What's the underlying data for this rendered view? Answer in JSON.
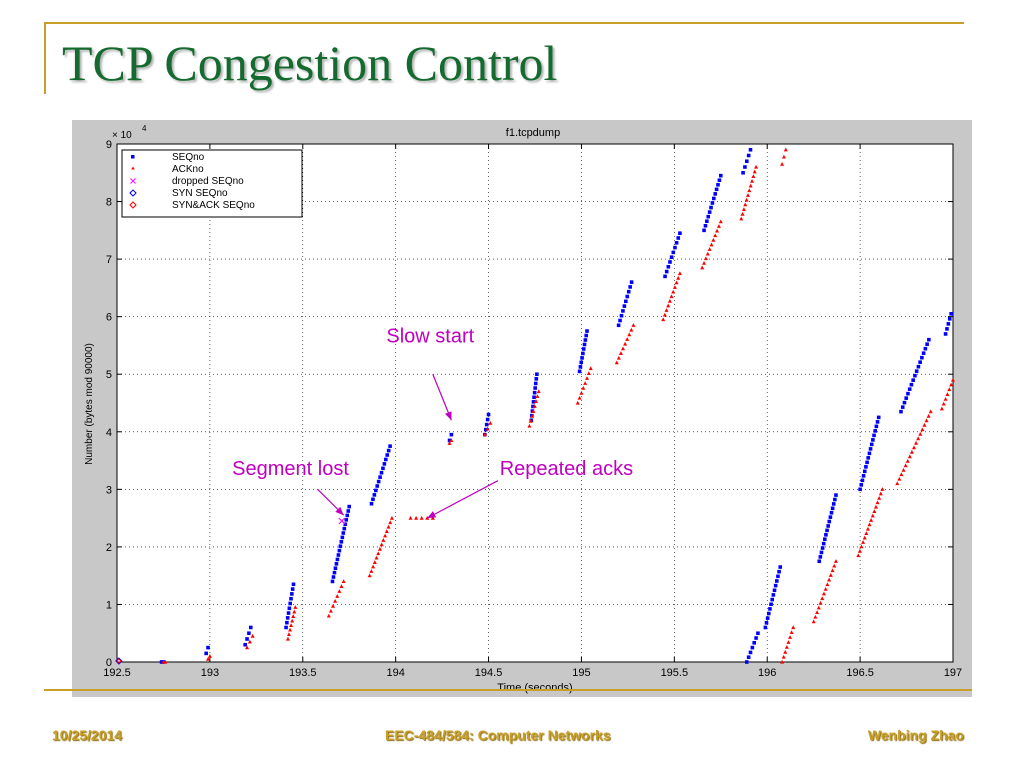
{
  "slide": {
    "title": "TCP Congestion Control",
    "footer_date": "10/25/2014",
    "footer_course": "EEC-484/584: Computer Networks",
    "footer_author": "Wenbing Zhao",
    "accent_color": "#c8a028",
    "title_color": "#156b2f"
  },
  "chart_data": {
    "type": "scatter",
    "title": "f1.tcpdump",
    "xlabel": "Time (seconds)",
    "ylabel": "Number (bytes mod 90000)",
    "y_multiplier_label": "× 10",
    "y_multiplier_exp": "4",
    "xlim": [
      192.5,
      197
    ],
    "ylim": [
      0,
      9
    ],
    "xticks": [
      "192.5",
      "193",
      "193.5",
      "194",
      "194.5",
      "195",
      "195.5",
      "196",
      "196.5",
      "197"
    ],
    "yticks": [
      "0",
      "1",
      "2",
      "3",
      "4",
      "5",
      "6",
      "7",
      "8",
      "9"
    ],
    "grid": true,
    "legend_position": "top-left",
    "legend": [
      {
        "label": "SEQno",
        "marker": "square",
        "color": "#0000ff"
      },
      {
        "label": "ACKno",
        "marker": "triangle",
        "color": "#ff0000"
      },
      {
        "label": "dropped SEQno",
        "marker": "x",
        "color": "#ff00ff"
      },
      {
        "label": "SYN SEQno",
        "marker": "diamond",
        "color": "#0000ff"
      },
      {
        "label": "SYN&ACK SEQno",
        "marker": "diamond",
        "color": "#ff0000"
      }
    ],
    "series": [
      {
        "name": "SEQno",
        "segments": [
          {
            "x": [
              192.74,
              192.75
            ],
            "y": [
              0,
              0
            ]
          },
          {
            "x": [
              192.98,
              192.99
            ],
            "y": [
              0.15,
              0.25
            ]
          },
          {
            "x": [
              193.19,
              193.22
            ],
            "y": [
              0.3,
              0.6
            ]
          },
          {
            "x": [
              193.41,
              193.45
            ],
            "y": [
              0.6,
              1.35
            ]
          },
          {
            "x": [
              193.66,
              193.75
            ],
            "y": [
              1.4,
              2.7
            ]
          },
          {
            "x": [
              193.87,
              193.97
            ],
            "y": [
              2.75,
              3.75
            ]
          },
          {
            "x": [
              194.29,
              194.3
            ],
            "y": [
              3.85,
              3.95
            ]
          },
          {
            "x": [
              194.48,
              194.5
            ],
            "y": [
              3.95,
              4.3
            ]
          },
          {
            "x": [
              194.73,
              194.76
            ],
            "y": [
              4.2,
              5.0
            ]
          },
          {
            "x": [
              194.99,
              195.03
            ],
            "y": [
              5.05,
              5.75
            ]
          },
          {
            "x": [
              195.2,
              195.27
            ],
            "y": [
              5.85,
              6.6
            ]
          },
          {
            "x": [
              195.45,
              195.53
            ],
            "y": [
              6.7,
              7.45
            ]
          },
          {
            "x": [
              195.66,
              195.75
            ],
            "y": [
              7.5,
              8.45
            ]
          },
          {
            "x": [
              195.87,
              195.91
            ],
            "y": [
              8.5,
              8.9
            ]
          },
          {
            "x": [
              195.89,
              195.95
            ],
            "y": [
              0,
              0.5
            ]
          },
          {
            "x": [
              195.99,
              196.07
            ],
            "y": [
              0.6,
              1.65
            ]
          },
          {
            "x": [
              196.28,
              196.37
            ],
            "y": [
              1.75,
              2.9
            ]
          },
          {
            "x": [
              196.5,
              196.6
            ],
            "y": [
              3.0,
              4.25
            ]
          },
          {
            "x": [
              196.72,
              196.87
            ],
            "y": [
              4.35,
              5.6
            ]
          },
          {
            "x": [
              196.96,
              196.99
            ],
            "y": [
              5.7,
              6.05
            ]
          }
        ]
      },
      {
        "name": "ACKno",
        "segments": [
          {
            "x": [
              192.75,
              192.76
            ],
            "y": [
              0,
              0
            ]
          },
          {
            "x": [
              192.99,
              193.0
            ],
            "y": [
              0.05,
              0.1
            ]
          },
          {
            "x": [
              193.2,
              193.23
            ],
            "y": [
              0.25,
              0.45
            ]
          },
          {
            "x": [
              193.42,
              193.46
            ],
            "y": [
              0.4,
              0.95
            ]
          },
          {
            "x": [
              193.64,
              193.72
            ],
            "y": [
              0.8,
              1.4
            ]
          },
          {
            "x": [
              193.86,
              193.98
            ],
            "y": [
              1.5,
              2.5
            ]
          },
          {
            "x": [
              194.08,
              194.2
            ],
            "y": [
              2.5,
              2.5
            ]
          },
          {
            "x": [
              194.29,
              194.3
            ],
            "y": [
              3.8,
              3.85
            ]
          },
          {
            "x": [
              194.48,
              194.51
            ],
            "y": [
              3.95,
              4.15
            ]
          },
          {
            "x": [
              194.72,
              194.77
            ],
            "y": [
              4.1,
              4.7
            ]
          },
          {
            "x": [
              194.98,
              195.05
            ],
            "y": [
              4.5,
              5.1
            ]
          },
          {
            "x": [
              195.19,
              195.28
            ],
            "y": [
              5.2,
              5.85
            ]
          },
          {
            "x": [
              195.44,
              195.53
            ],
            "y": [
              5.95,
              6.75
            ]
          },
          {
            "x": [
              195.65,
              195.75
            ],
            "y": [
              6.85,
              7.65
            ]
          },
          {
            "x": [
              195.86,
              195.94
            ],
            "y": [
              7.7,
              8.6
            ]
          },
          {
            "x": [
              196.08,
              196.1
            ],
            "y": [
              8.65,
              8.9
            ]
          },
          {
            "x": [
              196.08,
              196.14
            ],
            "y": [
              0,
              0.6
            ]
          },
          {
            "x": [
              196.25,
              196.37
            ],
            "y": [
              0.7,
              1.75
            ]
          },
          {
            "x": [
              196.49,
              196.62
            ],
            "y": [
              1.85,
              3.0
            ]
          },
          {
            "x": [
              196.7,
              196.88
            ],
            "y": [
              3.1,
              4.35
            ]
          },
          {
            "x": [
              196.94,
              197.0
            ],
            "y": [
              4.4,
              4.9
            ]
          }
        ]
      },
      {
        "name": "dropped SEQno",
        "points": [
          {
            "x": 193.71,
            "y": 2.45
          }
        ]
      },
      {
        "name": "SYN SEQno",
        "points": [
          {
            "x": 192.51,
            "y": 0
          }
        ]
      },
      {
        "name": "SYN&ACK SEQno",
        "points": [
          {
            "x": 192.51,
            "y": 0
          }
        ]
      }
    ],
    "annotations": [
      {
        "text": "Slow start",
        "x": 193.95,
        "y": 5.55,
        "arrow_to": [
          194.3,
          4.2
        ],
        "arrow_from": [
          194.2,
          5.0
        ]
      },
      {
        "text": "Segment lost",
        "x": 193.12,
        "y": 3.25,
        "arrow_to": [
          193.72,
          2.55
        ],
        "arrow_from": [
          193.58,
          3.0
        ]
      },
      {
        "text": "Repeated acks",
        "x": 194.56,
        "y": 3.25,
        "arrow_to": [
          194.17,
          2.5
        ],
        "arrow_from": [
          194.55,
          3.15
        ]
      }
    ],
    "annotation_color": "#c000c0"
  }
}
